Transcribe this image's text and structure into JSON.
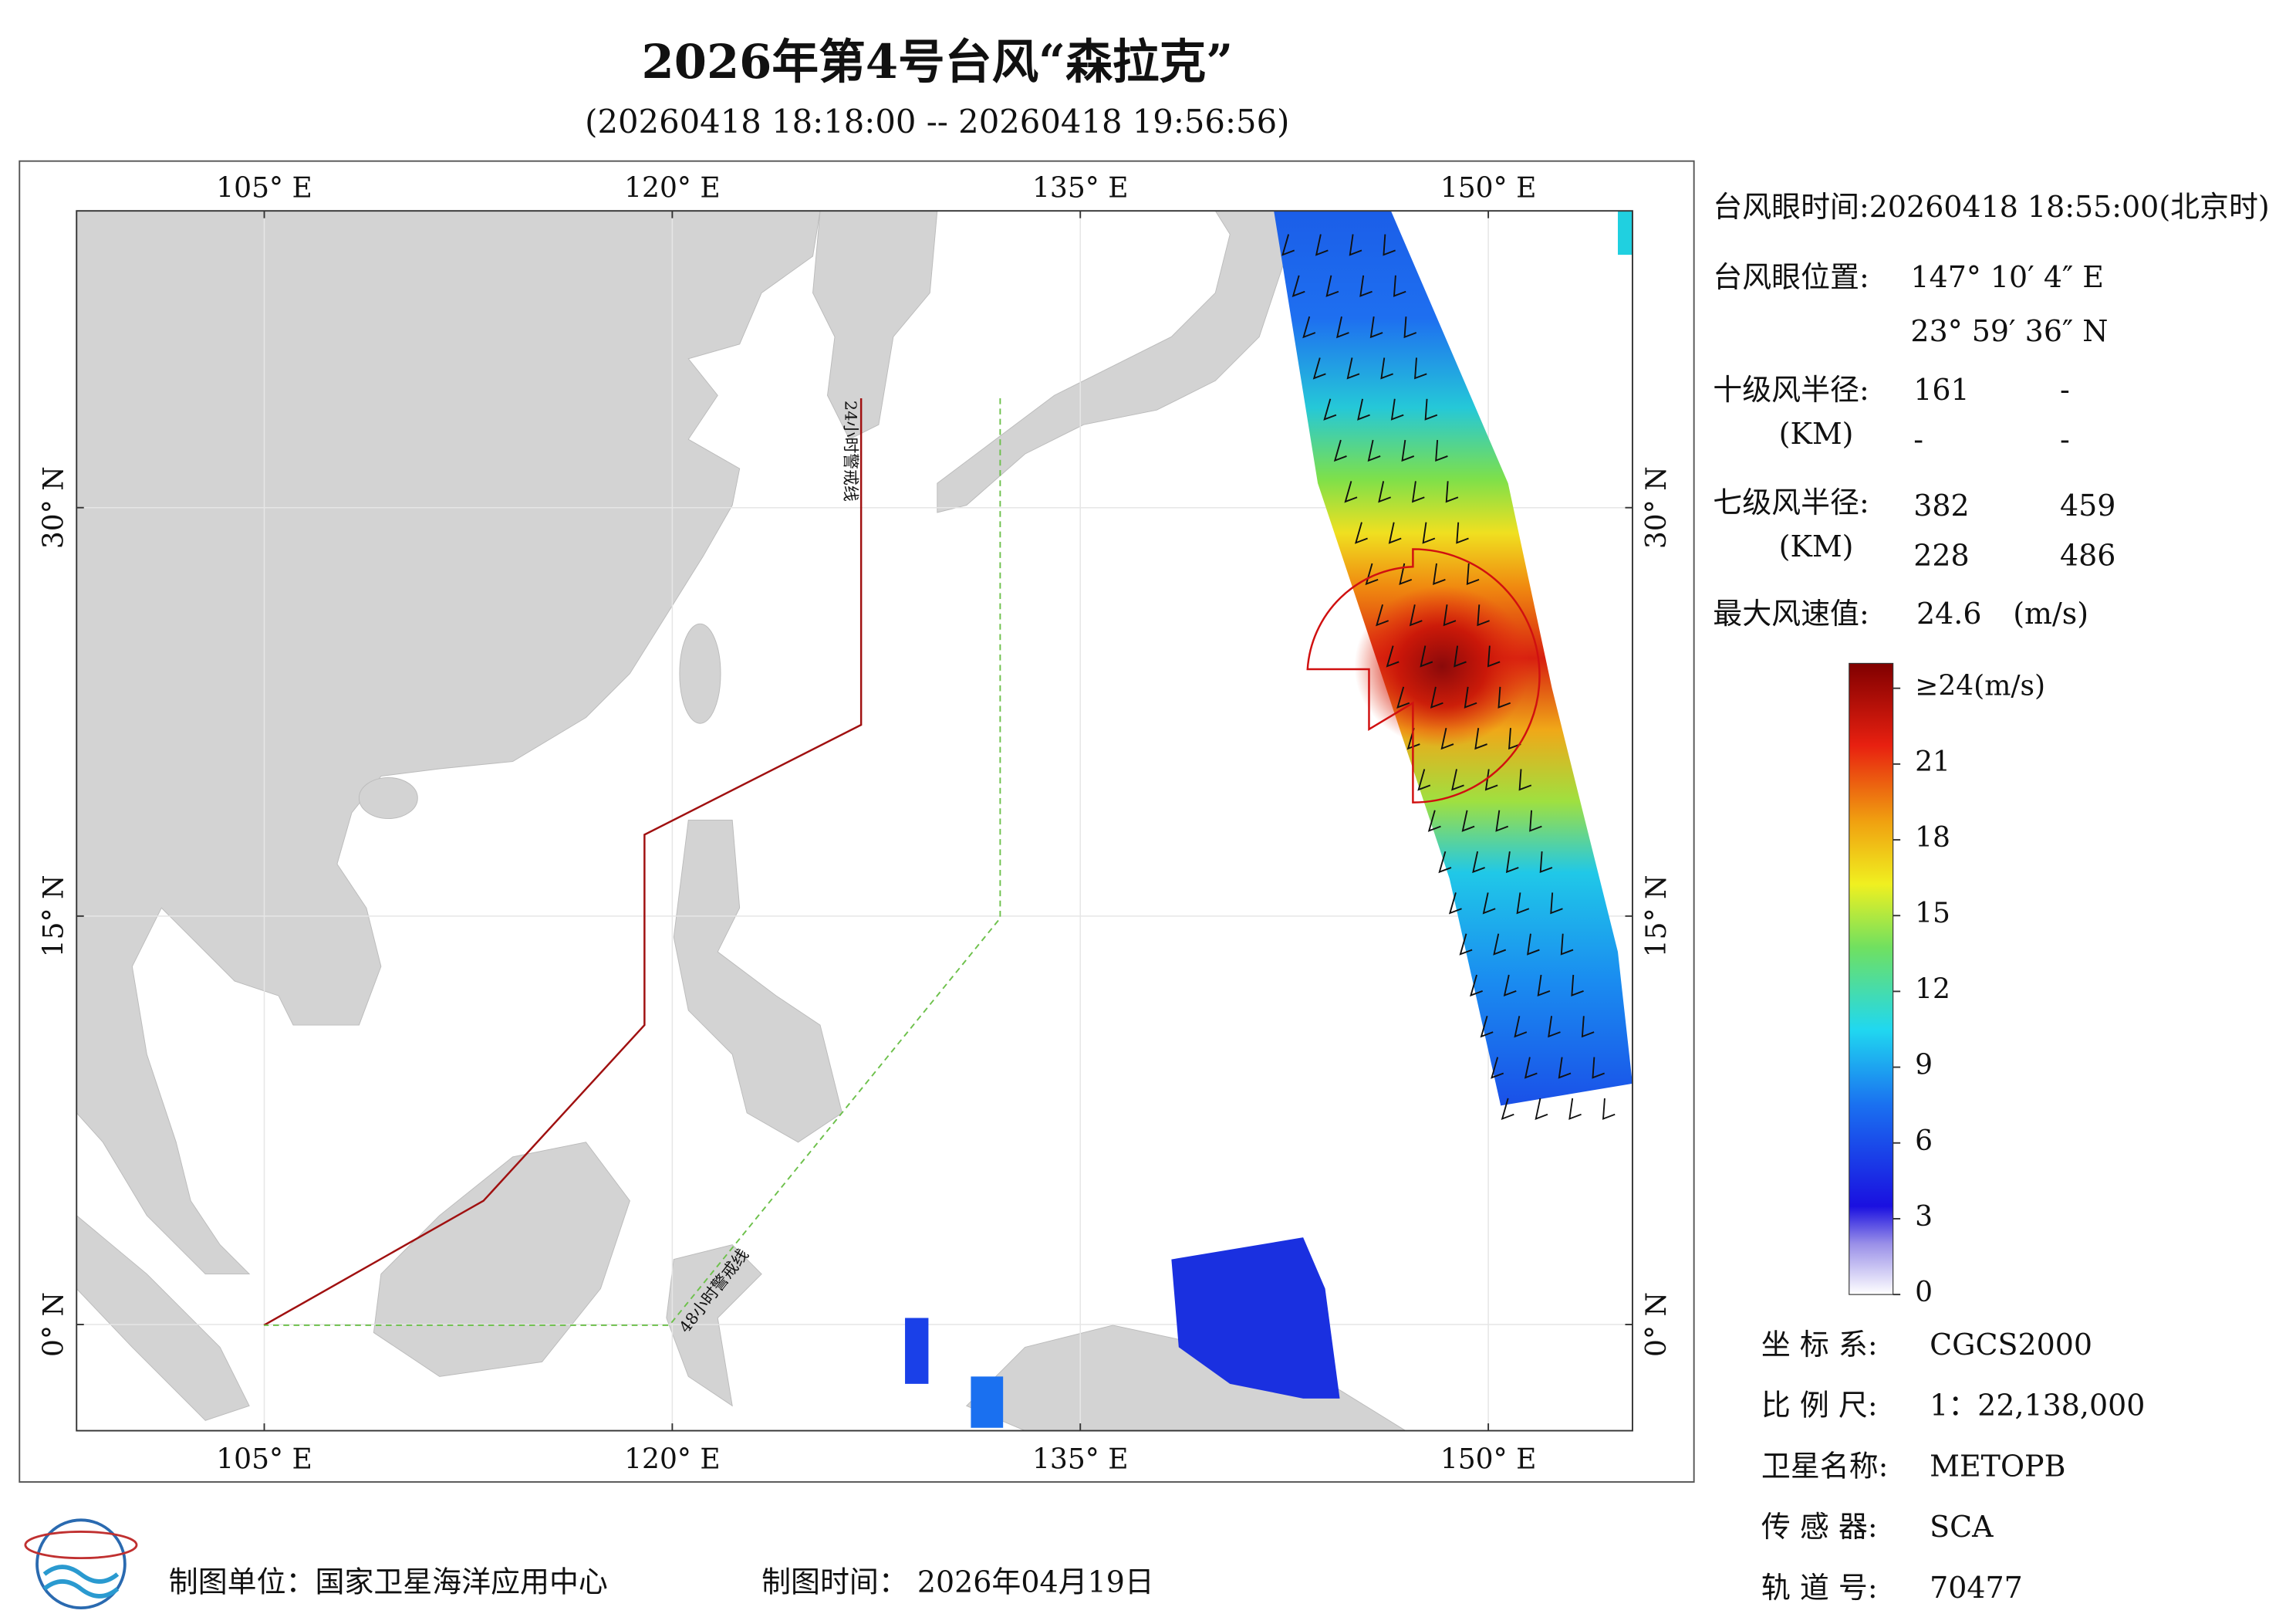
{
  "header": {
    "title": "2026年第4号台风“森拉克”",
    "subtitle": "(20260418 18:18:00 -- 20260418 19:56:56)"
  },
  "map": {
    "xlim": [
      98.1,
      155.3
    ],
    "ylim": [
      -3.9,
      40.9
    ],
    "xticks": [
      {
        "value": 105,
        "label": "105° E"
      },
      {
        "value": 120,
        "label": "120° E"
      },
      {
        "value": 135,
        "label": "135° E"
      },
      {
        "value": 150,
        "label": "150° E"
      }
    ],
    "yticks": [
      {
        "value": 0,
        "label": "0° N"
      },
      {
        "value": 15,
        "label": "15° N"
      },
      {
        "value": 30,
        "label": "30° N"
      }
    ],
    "line_24h": "24小时警戒线",
    "line_48h": "48小时警戒线"
  },
  "info": {
    "eye_time": "台风眼时间:20260418 18:55:00(北京时)",
    "eye_position_label": "台风眼位置:",
    "eye_lon": "147° 10′ 4″ E",
    "eye_lat": "23° 59′ 36″ N",
    "r10_label": "十级风半径:",
    "r10_unit": "(KM)",
    "r10": [
      161,
      "-",
      "-",
      "-"
    ],
    "r7_label": "七级风半径:",
    "r7_unit": "(KM)",
    "r7": [
      382,
      459,
      228,
      486
    ],
    "max_wind_label": "最大风速值:",
    "max_wind": 24.6,
    "max_wind_unit": "(m/s)"
  },
  "colorbar": {
    "lim": [
      0,
      24
    ],
    "ticks": [
      0,
      3,
      6,
      9,
      12,
      15,
      18,
      21,
      {
        "value": 24,
        "label": "≥24(m/s)"
      }
    ]
  },
  "meta": [
    [
      "坐 标 系:",
      "CGCS2000"
    ],
    [
      "比 例 尺:",
      "1：22,138,000"
    ],
    [
      "卫星名称:",
      "METOPB"
    ],
    [
      "传 感 器:",
      "SCA"
    ],
    [
      "轨 道 号:",
      "70477"
    ]
  ],
  "footer": {
    "unit": "制图单位：国家卫星海洋应用中心",
    "date": "制图时间： 2026年04月19日"
  }
}
